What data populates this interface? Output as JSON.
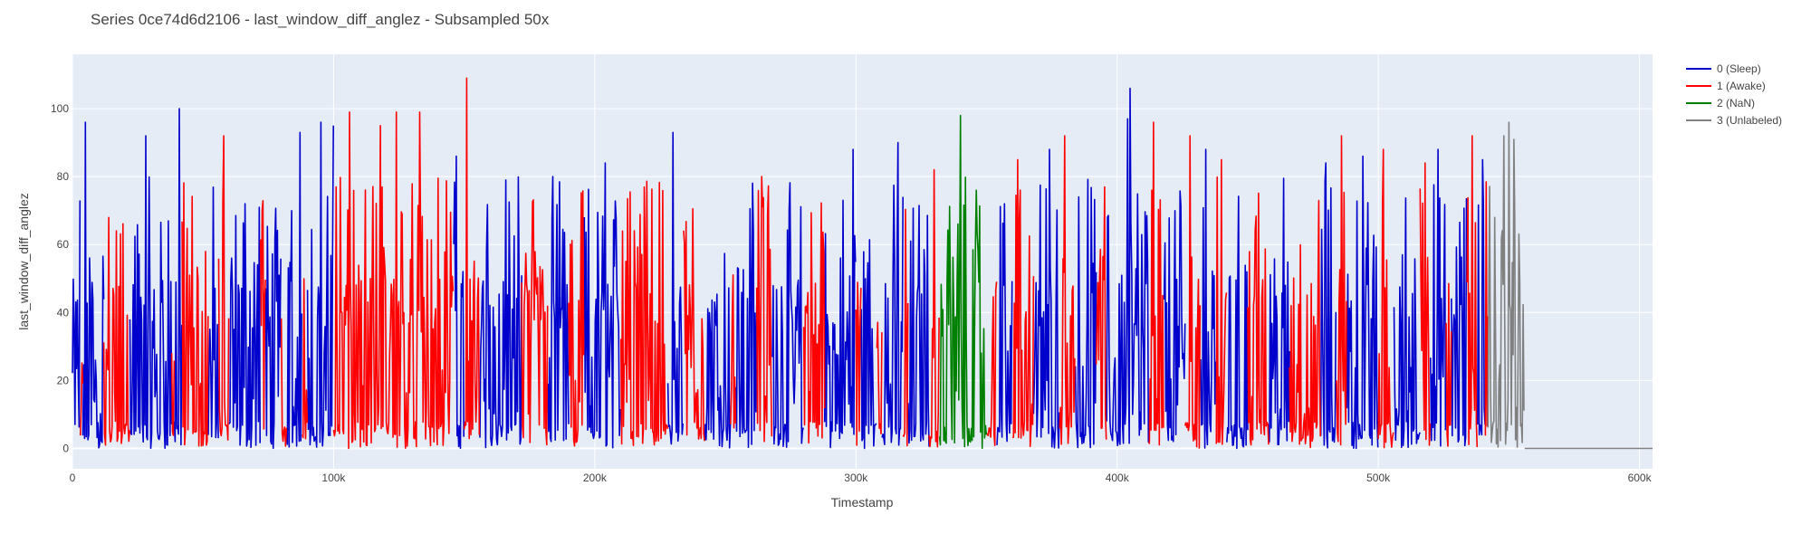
{
  "chart_data": {
    "type": "line",
    "title": "Series 0ce74d6d2106 - last_window_diff_anglez - Subsampled 50x",
    "xlabel": "Timestamp",
    "ylabel": "last_window_diff_anglez",
    "xlim": [
      0,
      605000
    ],
    "ylim": [
      -6,
      116
    ],
    "x_ticks": [
      0,
      100000,
      200000,
      300000,
      400000,
      500000,
      600000
    ],
    "x_tick_labels": [
      "0",
      "100k",
      "200k",
      "300k",
      "400k",
      "500k",
      "600k"
    ],
    "y_ticks": [
      0,
      20,
      40,
      60,
      80,
      100
    ],
    "y_tick_labels": [
      "0",
      "20",
      "40",
      "60",
      "80",
      "100"
    ],
    "grid": true,
    "legend_position": "top-right-outside",
    "series": [
      {
        "name": "0 (Sleep)",
        "color": "#0000cc",
        "segments": [
          [
            0,
            3000
          ],
          [
            4000,
            12000
          ],
          [
            22000,
            38000
          ],
          [
            39000,
            42000
          ],
          [
            52000,
            56000
          ],
          [
            60000,
            72000
          ],
          [
            74000,
            80000
          ],
          [
            82000,
            88000
          ],
          [
            90000,
            100000
          ],
          [
            146000,
            150000
          ],
          [
            156000,
            172000
          ],
          [
            182000,
            190000
          ],
          [
            196000,
            210000
          ],
          [
            228000,
            234000
          ],
          [
            242000,
            252000
          ],
          [
            254000,
            262000
          ],
          [
            268000,
            280000
          ],
          [
            288000,
            300000
          ],
          [
            302000,
            308000
          ],
          [
            310000,
            318000
          ],
          [
            320000,
            328000
          ],
          [
            354000,
            360000
          ],
          [
            368000,
            378000
          ],
          [
            384000,
            392000
          ],
          [
            396000,
            412000
          ],
          [
            418000,
            426000
          ],
          [
            432000,
            438000
          ],
          [
            442000,
            450000
          ],
          [
            458000,
            466000
          ],
          [
            478000,
            484000
          ],
          [
            488000,
            500000
          ],
          [
            506000,
            516000
          ],
          [
            520000,
            526000
          ],
          [
            528000,
            534000
          ],
          [
            538000,
            541000
          ]
        ],
        "peaks": [
          [
            5000,
            96
          ],
          [
            14000,
            88
          ],
          [
            28000,
            92
          ],
          [
            41000,
            100
          ],
          [
            64000,
            90
          ],
          [
            87000,
            93
          ],
          [
            95000,
            96
          ],
          [
            100000,
            95
          ],
          [
            147000,
            86
          ],
          [
            150000,
            96
          ],
          [
            166000,
            79
          ],
          [
            184000,
            80
          ],
          [
            204000,
            84
          ],
          [
            230000,
            93
          ],
          [
            246000,
            86
          ],
          [
            272000,
            75
          ],
          [
            299000,
            88
          ],
          [
            316000,
            90
          ],
          [
            357000,
            72
          ],
          [
            374000,
            88
          ],
          [
            394000,
            76
          ],
          [
            404000,
            97
          ],
          [
            405000,
            106
          ],
          [
            422000,
            103
          ],
          [
            434000,
            88
          ],
          [
            446000,
            84
          ],
          [
            462000,
            78
          ],
          [
            480000,
            84
          ],
          [
            494000,
            86
          ],
          [
            510000,
            89
          ],
          [
            523000,
            88
          ],
          [
            532000,
            96
          ],
          [
            540000,
            85
          ]
        ]
      },
      {
        "name": "1 (Awake)",
        "color": "#ff0000",
        "segments": [
          [
            3000,
            4000
          ],
          [
            12000,
            22000
          ],
          [
            38000,
            39000
          ],
          [
            42000,
            52000
          ],
          [
            56000,
            60000
          ],
          [
            72000,
            74000
          ],
          [
            80000,
            82000
          ],
          [
            88000,
            90000
          ],
          [
            100000,
            146000
          ],
          [
            150000,
            156000
          ],
          [
            172000,
            182000
          ],
          [
            190000,
            196000
          ],
          [
            210000,
            228000
          ],
          [
            234000,
            242000
          ],
          [
            252000,
            254000
          ],
          [
            262000,
            268000
          ],
          [
            280000,
            288000
          ],
          [
            300000,
            302000
          ],
          [
            308000,
            310000
          ],
          [
            318000,
            320000
          ],
          [
            328000,
            332000
          ],
          [
            350000,
            354000
          ],
          [
            360000,
            368000
          ],
          [
            378000,
            384000
          ],
          [
            392000,
            396000
          ],
          [
            412000,
            418000
          ],
          [
            426000,
            432000
          ],
          [
            438000,
            442000
          ],
          [
            450000,
            458000
          ],
          [
            466000,
            478000
          ],
          [
            484000,
            488000
          ],
          [
            500000,
            506000
          ],
          [
            516000,
            520000
          ],
          [
            526000,
            528000
          ],
          [
            534000,
            538000
          ],
          [
            541000,
            542000
          ]
        ],
        "peaks": [
          [
            16000,
            98
          ],
          [
            46000,
            82
          ],
          [
            58000,
            92
          ],
          [
            106000,
            99
          ],
          [
            118000,
            95
          ],
          [
            124000,
            99
          ],
          [
            133000,
            99
          ],
          [
            136000,
            86
          ],
          [
            151000,
            109
          ],
          [
            176000,
            90
          ],
          [
            214000,
            82
          ],
          [
            238000,
            90
          ],
          [
            264000,
            80
          ],
          [
            284000,
            87
          ],
          [
            330000,
            82
          ],
          [
            362000,
            85
          ],
          [
            380000,
            92
          ],
          [
            388000,
            91
          ],
          [
            414000,
            96
          ],
          [
            428000,
            92
          ],
          [
            440000,
            85
          ],
          [
            454000,
            82
          ],
          [
            470000,
            92
          ],
          [
            486000,
            92
          ],
          [
            502000,
            88
          ],
          [
            518000,
            84
          ],
          [
            536000,
            92
          ]
        ]
      },
      {
        "name": "2 (NaN)",
        "color": "#008000",
        "segments": [
          [
            332000,
            350000
          ]
        ],
        "peaks": [
          [
            340000,
            98
          ],
          [
            346000,
            76
          ]
        ]
      },
      {
        "name": "3 (Unlabeled)",
        "color": "#808080",
        "segments": [
          [
            542000,
            556000
          ],
          [
            556000,
            605000
          ]
        ],
        "peaks": [
          [
            548000,
            92
          ],
          [
            550000,
            96
          ],
          [
            552000,
            91
          ],
          [
            554000,
            76
          ]
        ]
      }
    ]
  }
}
